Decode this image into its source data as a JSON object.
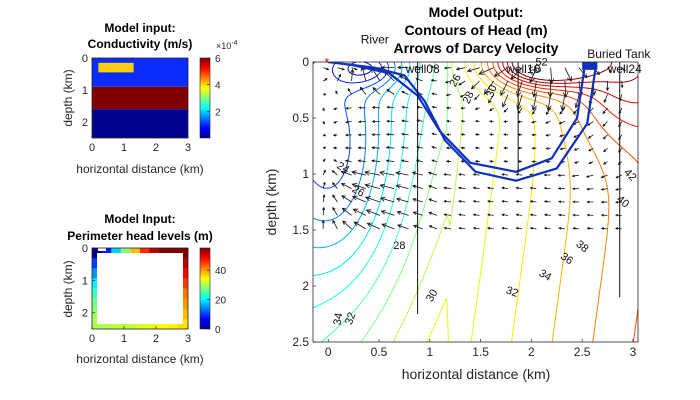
{
  "chart_data": [
    {
      "type": "heatmap",
      "title": [
        "Model input:",
        "Conductivity (m/s)"
      ],
      "xlabel": "horizontal distance (km)",
      "ylabel": "depth (km)",
      "xlim": [
        0,
        3
      ],
      "ylim": [
        0,
        2.5
      ],
      "y_reversed": true,
      "xticks": [
        "0",
        "1",
        "2",
        "3"
      ],
      "yticks": [
        "0",
        "1",
        "2"
      ],
      "colorbar": {
        "range": [
          0,
          6
        ],
        "ticks": [
          "2",
          "4",
          "6"
        ],
        "multiplier": "×10",
        "exponent": "-4",
        "colormap": "jet"
      },
      "regions": [
        {
          "x": [
            0,
            3
          ],
          "y": [
            0,
            0.9
          ],
          "value": 1.0,
          "color": "#0a2cff"
        },
        {
          "x": [
            0.2,
            1.3
          ],
          "y": [
            0.15,
            0.45
          ],
          "value": 4.5,
          "color": "#fbcd12"
        },
        {
          "x": [
            0,
            3
          ],
          "y": [
            0.9,
            1.6
          ],
          "value": 6.0,
          "color": "#800000"
        },
        {
          "x": [
            0,
            3
          ],
          "y": [
            1.6,
            2.5
          ],
          "value": 0.3,
          "color": "#00008f"
        }
      ]
    },
    {
      "type": "heatmap",
      "title": [
        "Model Input:",
        "Perimeter head levels (m)"
      ],
      "xlabel": "horizontal distance (km)",
      "ylabel": "depth (km)",
      "xlim": [
        0,
        3
      ],
      "ylim": [
        0,
        2.5
      ],
      "y_reversed": true,
      "xticks": [
        "0",
        "1",
        "2",
        "3"
      ],
      "yticks": [
        "0",
        "1",
        "2"
      ],
      "colorbar": {
        "range": [
          0,
          55
        ],
        "ticks": [
          "0",
          "20",
          "40"
        ],
        "colormap": "jet"
      },
      "perimeter": {
        "top": [
          0,
          8,
          18,
          28,
          38,
          46,
          52,
          55,
          55,
          55
        ],
        "left_top_to_bottom": [
          0,
          10,
          15,
          20,
          24,
          27,
          29,
          30
        ],
        "right_top_to_bottom": [
          55,
          52,
          48,
          45,
          42,
          40,
          38,
          36
        ],
        "bottom_left_to_right": [
          30,
          30,
          31,
          31,
          32,
          33,
          34,
          35,
          36
        ]
      }
    },
    {
      "type": "contour",
      "title": [
        "Model Output:",
        "Contours of Head (m)",
        "Arrows of Darcy Velocity"
      ],
      "xlabel": "horizontal distance (km)",
      "ylabel": "depth (km)",
      "xlim": [
        -0.15,
        3.05
      ],
      "ylim": [
        0,
        2.5
      ],
      "y_reversed": true,
      "xticks": [
        "0",
        "0.5",
        "1",
        "1.5",
        "2",
        "2.5",
        "3"
      ],
      "yticks": [
        "0",
        "0.5",
        "1",
        "1.5",
        "2",
        "2.5"
      ],
      "contour_labels": [
        {
          "text": "28",
          "x": 0.7,
          "y": 1.67,
          "rot": 0
        },
        {
          "text": "30",
          "x": 1.05,
          "y": 2.1,
          "rot": -60
        },
        {
          "text": "32",
          "x": 1.8,
          "y": 2.08,
          "rot": 20
        },
        {
          "text": "34",
          "x": 2.12,
          "y": 1.93,
          "rot": 30
        },
        {
          "text": "36",
          "x": 2.33,
          "y": 1.78,
          "rot": 35
        },
        {
          "text": "38",
          "x": 2.48,
          "y": 1.67,
          "rot": 40
        },
        {
          "text": "40",
          "x": 2.88,
          "y": 1.27,
          "rot": 40
        },
        {
          "text": "42",
          "x": 2.95,
          "y": 1.03,
          "rot": 45
        },
        {
          "text": "26",
          "x": 0.28,
          "y": 1.18,
          "rot": 30
        },
        {
          "text": "24",
          "x": 0.13,
          "y": 0.97,
          "rot": 30
        },
        {
          "text": "34",
          "x": 0.13,
          "y": 2.3,
          "rot": -80
        },
        {
          "text": "32",
          "x": 0.25,
          "y": 2.3,
          "rot": -70
        },
        {
          "text": "26",
          "x": 1.28,
          "y": 0.18,
          "rot": -60
        },
        {
          "text": "28",
          "x": 1.41,
          "y": 0.33,
          "rot": -65
        },
        {
          "text": "30",
          "x": 1.64,
          "y": 0.27,
          "rot": -70
        },
        {
          "text": "52",
          "x": 2.1,
          "y": 0.03,
          "rot": 0
        },
        {
          "text": "50",
          "x": 2.05,
          "y": 0.1,
          "rot": -20
        }
      ],
      "wells": [
        {
          "name": "well08",
          "x": 0.88,
          "depth": 2.25
        },
        {
          "name": "well16",
          "x": 1.87,
          "depth": 1.0
        },
        {
          "name": "well24",
          "x": 2.87,
          "depth": 2.1
        }
      ],
      "annotations": [
        {
          "text": "River",
          "x": 0.32,
          "y": -0.2
        },
        {
          "text": "Buried Tank",
          "x": 2.55,
          "y": -0.07
        }
      ],
      "marker": {
        "symbol": "*",
        "x": 0.0,
        "y": 0.0,
        "color": "#ff0000"
      },
      "tank": {
        "x": [
          2.5,
          2.65
        ],
        "y": [
          0.0,
          0.07
        ],
        "color": "#1030c0"
      },
      "plume": {
        "color": "#1030c0"
      }
    }
  ]
}
